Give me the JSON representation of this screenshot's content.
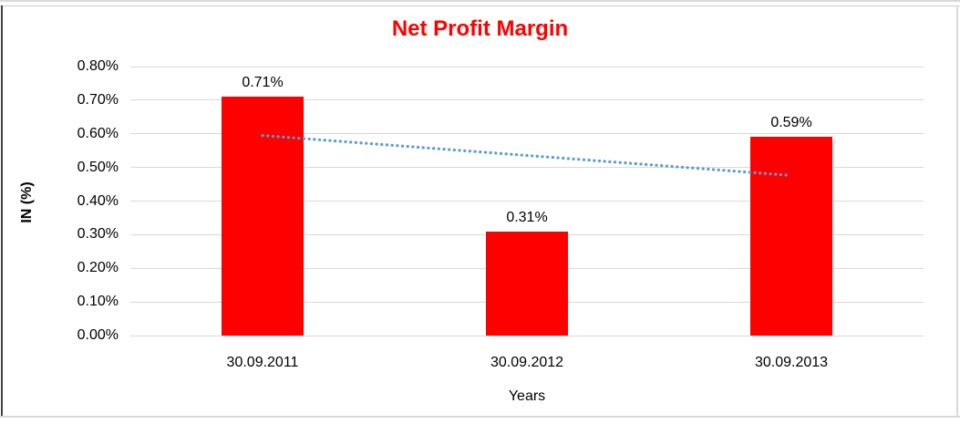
{
  "chart_data": {
    "type": "bar",
    "title": "Net Profit Margin",
    "categories": [
      "30.09.2011",
      "30.09.2012",
      "30.09.2013"
    ],
    "values": [
      0.71,
      0.31,
      0.59
    ],
    "data_labels": [
      "0.71%",
      "0.31%",
      "0.59%"
    ],
    "xlabel": "Years",
    "ylabel": "IN (%)",
    "ylim": [
      0,
      0.8
    ],
    "ytick_step": 0.1,
    "ytick_labels": [
      "0.00%",
      "0.10%",
      "0.20%",
      "0.30%",
      "0.40%",
      "0.50%",
      "0.60%",
      "0.70%",
      "0.80%"
    ],
    "grid": true,
    "legend": "none",
    "colors": {
      "bar": "#ff0000",
      "title": "#ff0000",
      "gridline": "#d9d9d9",
      "axis_text": "#000000",
      "trendline": "#5b9bd5"
    },
    "trendline": {
      "type": "linear",
      "style": "dotted",
      "start_value": 0.595,
      "end_value": 0.477
    }
  }
}
